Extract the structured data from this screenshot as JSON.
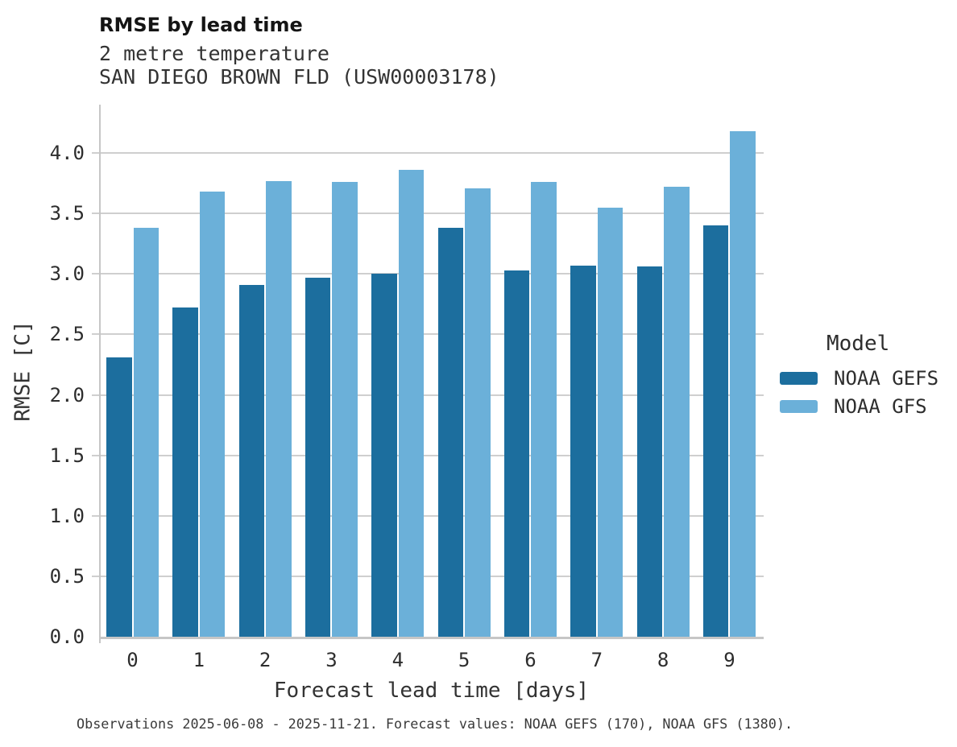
{
  "header": {
    "title": "RMSE by lead time",
    "subtitle1": "2 metre temperature",
    "subtitle2": "SAN DIEGO BROWN FLD (USW00003178)"
  },
  "chart_data": {
    "type": "bar",
    "title": "RMSE by lead time",
    "subtitle": [
      "2 metre temperature",
      "SAN DIEGO BROWN FLD (USW00003178)"
    ],
    "categories": [
      0,
      1,
      2,
      3,
      4,
      5,
      6,
      7,
      8,
      9
    ],
    "series": [
      {
        "name": "NOAA GEFS",
        "color": "#1c6e9e",
        "values": [
          2.31,
          2.72,
          2.91,
          2.97,
          3.0,
          3.38,
          3.03,
          3.07,
          3.06,
          3.4
        ]
      },
      {
        "name": "NOAA GFS",
        "color": "#6bb0d9",
        "values": [
          3.38,
          3.68,
          3.77,
          3.76,
          3.86,
          3.71,
          3.76,
          3.55,
          3.72,
          4.18
        ]
      }
    ],
    "xlabel": "Forecast lead time [days]",
    "ylabel": "RMSE [C]",
    "ylim": [
      0,
      4.4
    ],
    "yticks": [
      0.0,
      0.5,
      1.0,
      1.5,
      2.0,
      2.5,
      3.0,
      3.5,
      4.0
    ],
    "grid": true,
    "legend_title": "Model",
    "legend_position": "right"
  },
  "legend": {
    "title": "Model",
    "entries": [
      "NOAA GEFS",
      "NOAA GFS"
    ]
  },
  "footer": {
    "text": "Observations 2025-06-08 - 2025-11-21. Forecast values: NOAA GEFS (170), NOAA GFS (1380)."
  }
}
